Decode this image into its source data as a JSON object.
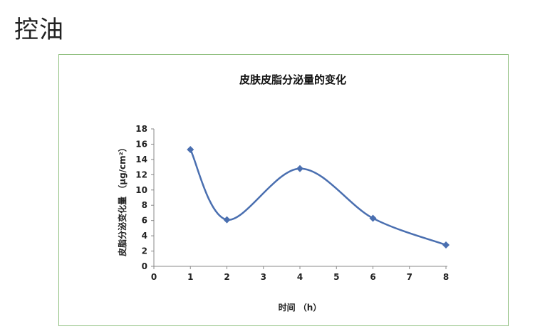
{
  "page": {
    "title": "控油"
  },
  "chart_data": {
    "type": "line",
    "title": "皮肤皮脂分泌量的变化",
    "xlabel": "时间 （h）",
    "ylabel": "皮脂分泌变化量 （μg/cm²）",
    "x_ticks": [
      "0",
      "1",
      "2",
      "3",
      "4",
      "5",
      "6",
      "7",
      "8"
    ],
    "y_ticks": [
      "0",
      "2",
      "4",
      "6",
      "8",
      "10",
      "12",
      "14",
      "16",
      "18"
    ],
    "xlim": [
      0,
      8
    ],
    "ylim": [
      0,
      18
    ],
    "grid": false,
    "smooth": true,
    "series": [
      {
        "x": [
          1,
          2,
          4,
          6,
          8
        ],
        "values": [
          15.3,
          6.1,
          12.8,
          6.3,
          2.8
        ],
        "color": "#4a6fb0",
        "marker": "diamond"
      }
    ]
  }
}
